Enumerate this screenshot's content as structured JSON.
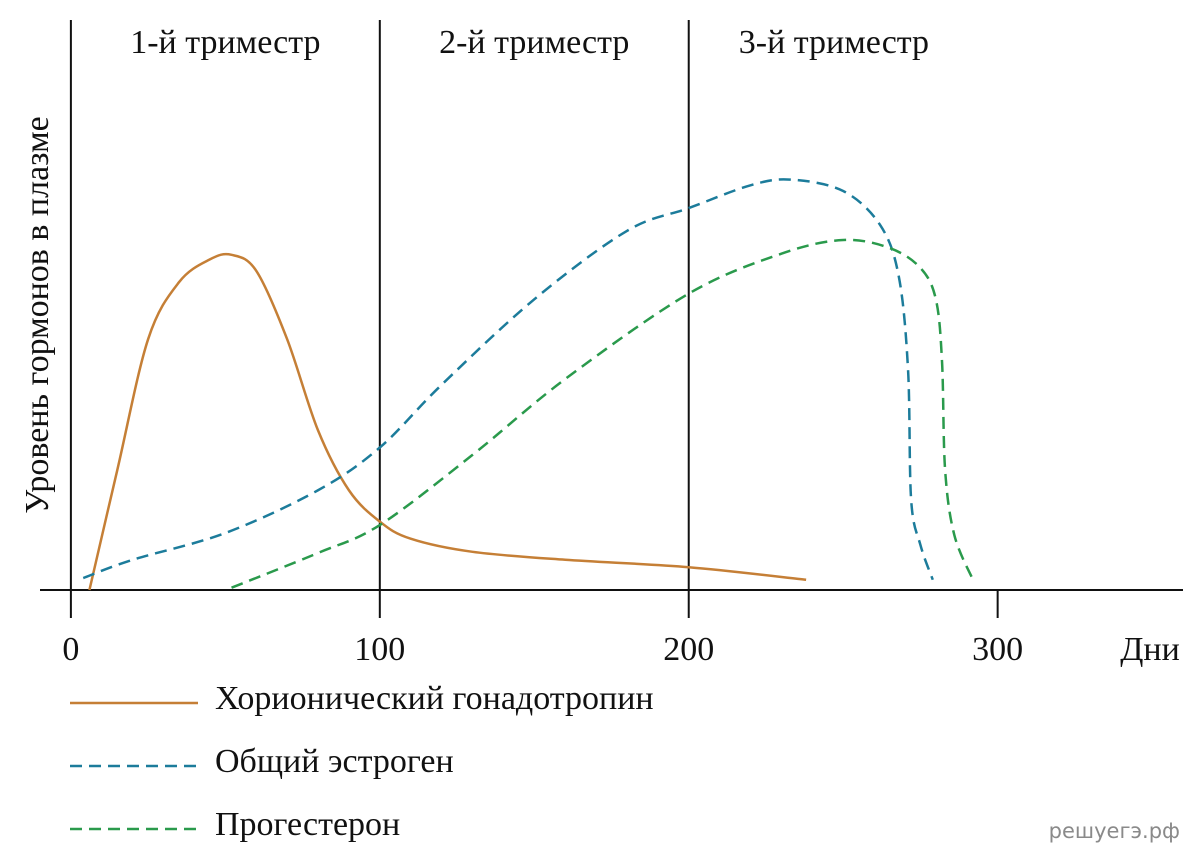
{
  "chart_data": {
    "type": "line",
    "ylabel": "Уровень гормонов в плазме",
    "xlabel": "Дни",
    "annotations": [
      {
        "text": "1-й триместр",
        "x": 50
      },
      {
        "text": "2-й триместр",
        "x": 150
      },
      {
        "text": "3-й триместр",
        "x": 247
      }
    ],
    "vlines": [
      100,
      200
    ],
    "xlim": [
      -10,
      360
    ],
    "xticks": [
      0,
      100,
      200,
      300
    ],
    "ylim": [
      0,
      100
    ],
    "watermark": "решуегэ.рф",
    "series": [
      {
        "name": "Хорионический гонадотропин",
        "color": "#c57f36",
        "dashed": false,
        "x": [
          6,
          15,
          25,
          35,
          45,
          52,
          60,
          70,
          80,
          90,
          100,
          110,
          130,
          160,
          200,
          238
        ],
        "values": [
          0,
          21,
          44,
          54,
          58,
          58.8,
          56,
          44,
          28,
          17.5,
          12,
          9,
          6.7,
          5.3,
          4,
          1.8
        ]
      },
      {
        "name": "Общий эстроген",
        "color": "#1c7c9b",
        "dashed": true,
        "x": [
          4,
          20,
          50,
          80,
          100,
          120,
          150,
          180,
          200,
          220,
          233,
          250,
          262,
          268,
          271,
          272,
          275,
          279
        ],
        "values": [
          2.1,
          5.3,
          10,
          17.5,
          25,
          36,
          51,
          63,
          67,
          71,
          72,
          70,
          64,
          55,
          38.6,
          15.8,
          7.9,
          1.8
        ]
      },
      {
        "name": "Прогестерон",
        "color": "#2a9a4c",
        "dashed": true,
        "x": [
          52,
          80,
          100,
          130,
          160,
          200,
          230,
          250,
          265,
          275,
          280,
          282,
          283,
          286,
          292
        ],
        "values": [
          0.4,
          6.5,
          11.4,
          23.7,
          37,
          52,
          59,
          61.4,
          60,
          56.5,
          51,
          40,
          21,
          9.6,
          1.8
        ]
      }
    ]
  }
}
